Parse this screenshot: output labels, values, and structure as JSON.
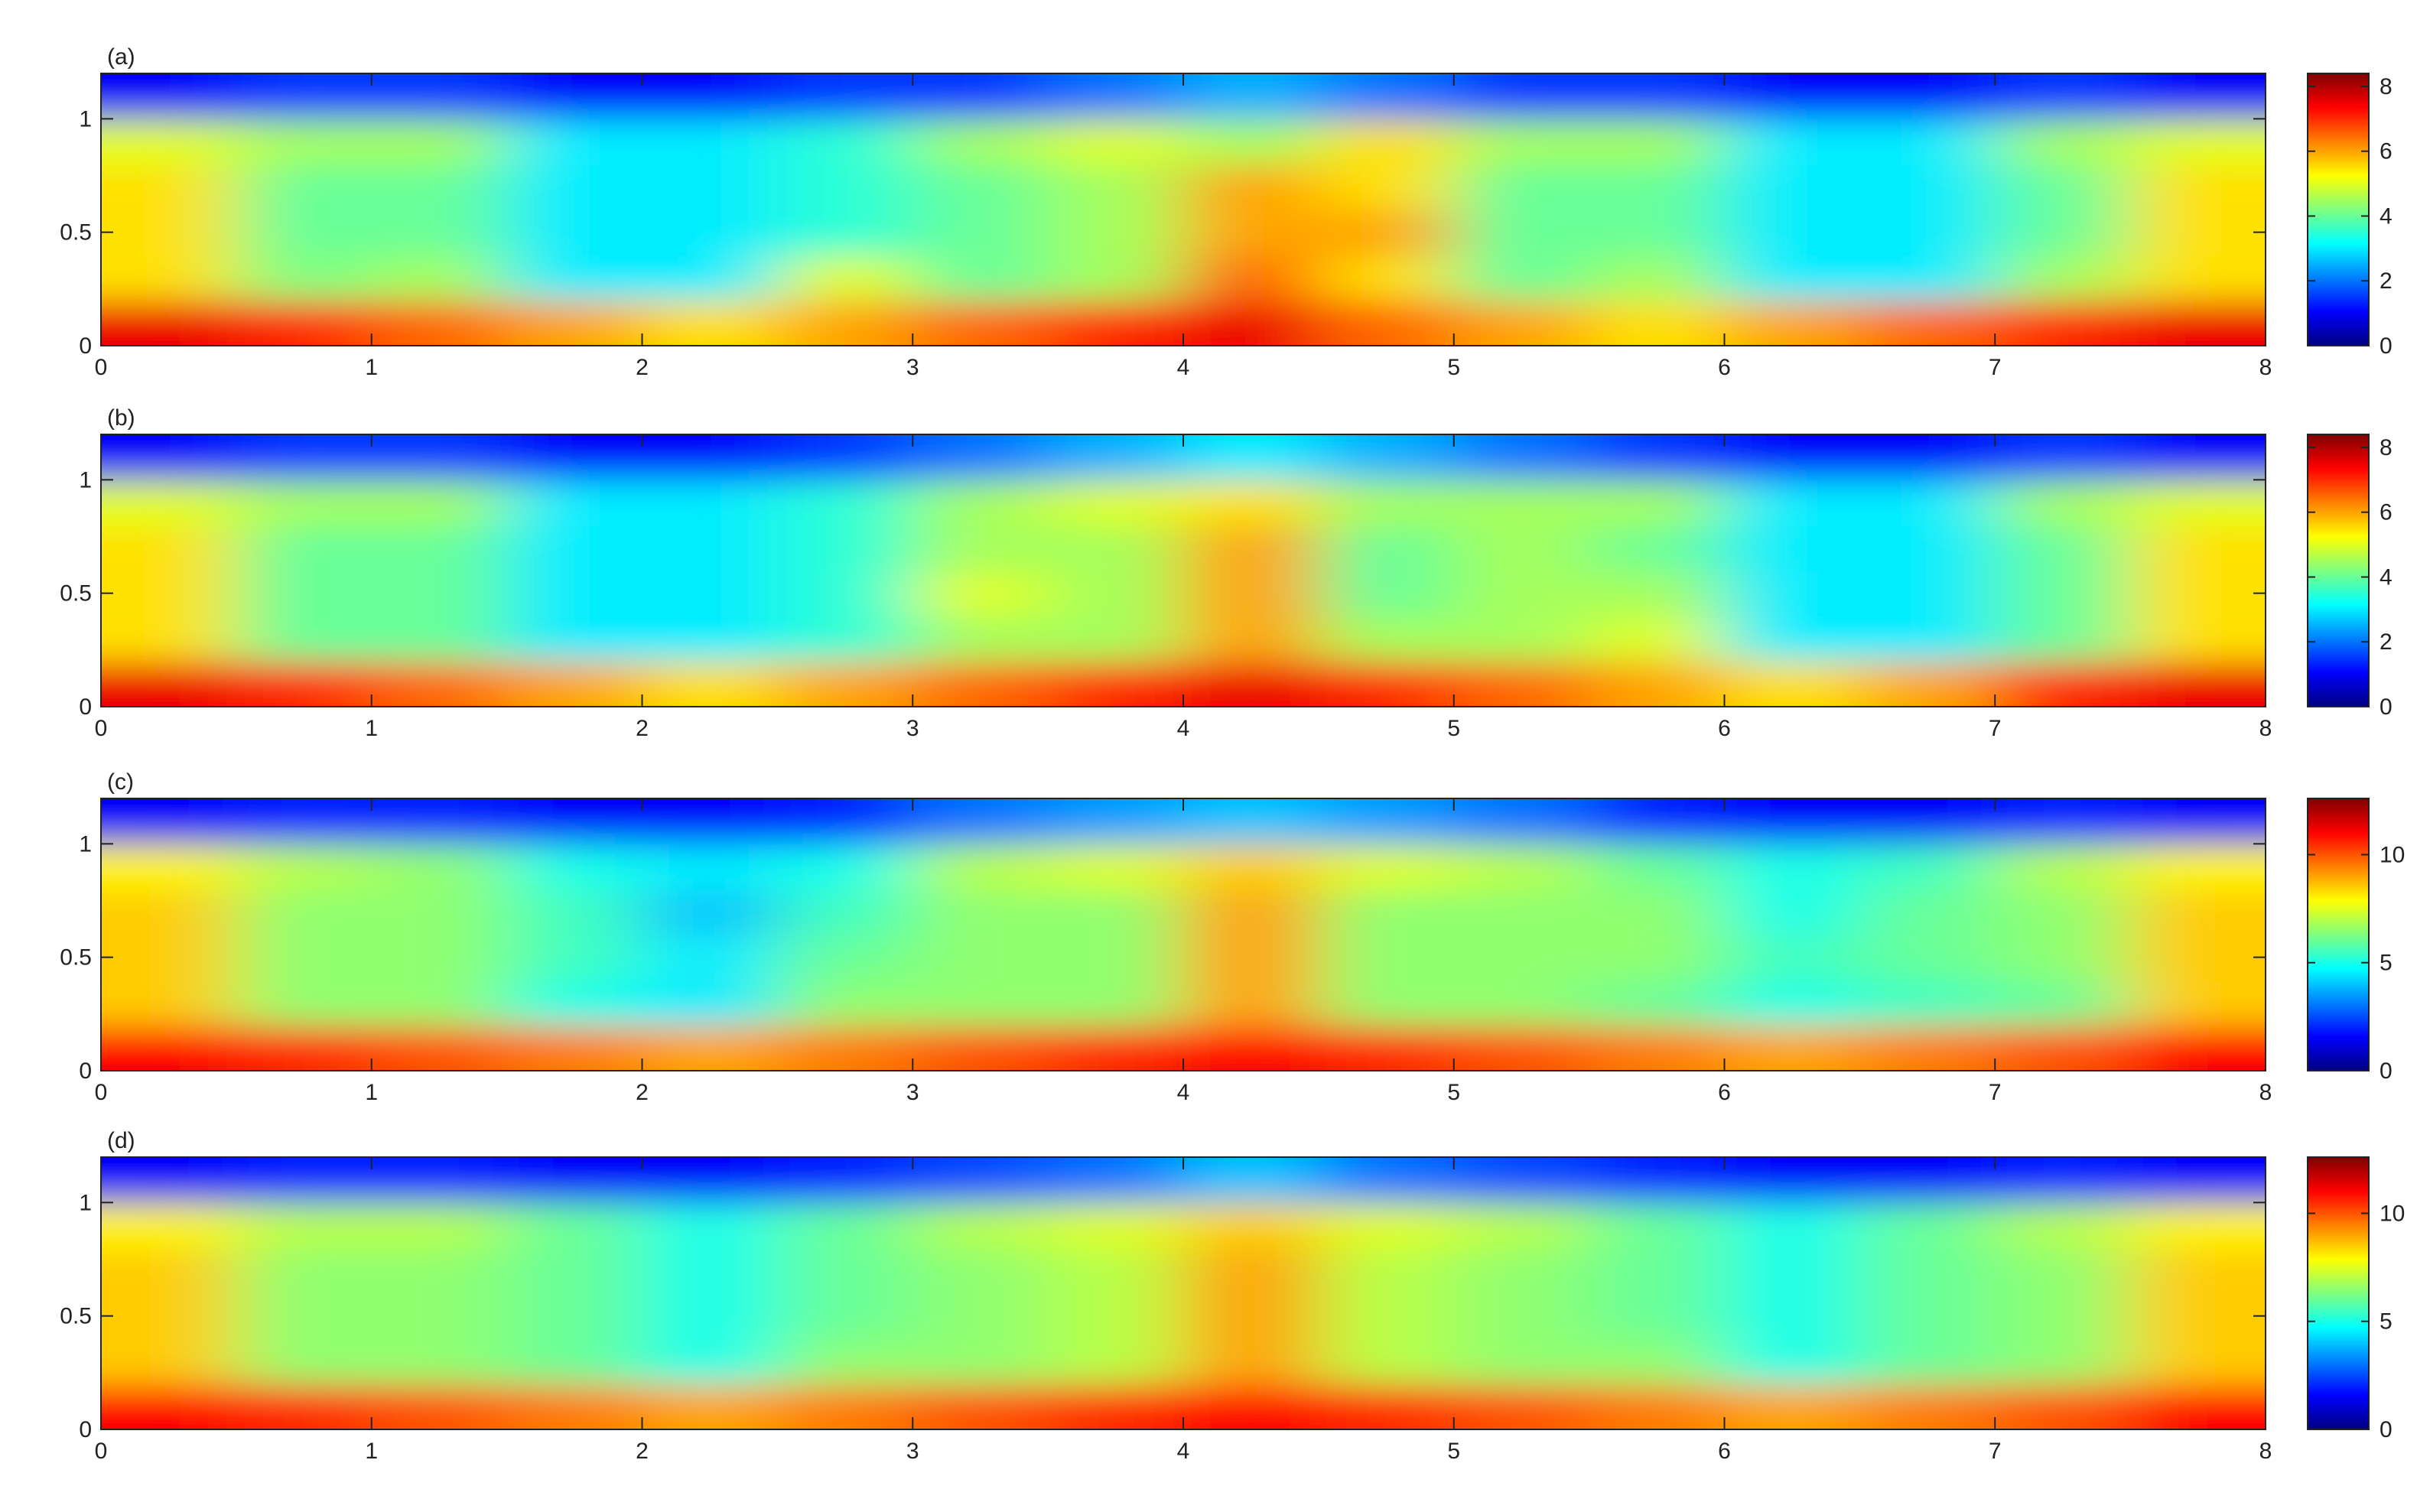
{
  "chart_data": [
    {
      "type": "heatmap",
      "label": "(a)",
      "colormap": "jet",
      "x": [
        0.25,
        0.75,
        1.25,
        1.75,
        2.25,
        2.75,
        3.25,
        3.75,
        4.25,
        4.75,
        5.25,
        5.75,
        6.25,
        6.75,
        7.25,
        7.75
      ],
      "y": [
        0.1,
        0.3,
        0.5,
        0.7,
        0.9,
        1.1
      ],
      "z": [
        [
          7.5,
          7,
          6.5,
          6,
          5.5,
          6,
          6.5,
          7,
          7.5,
          6.5,
          6,
          5.5,
          6,
          6.5,
          7,
          7.5
        ],
        [
          5.5,
          4.2,
          4.5,
          3,
          3,
          5,
          4,
          4.5,
          6.5,
          5.5,
          4,
          4.5,
          3,
          3,
          4.5,
          5.5
        ],
        [
          5.5,
          4,
          4,
          3,
          3,
          3.5,
          4,
          4.5,
          6,
          6,
          4,
          4,
          3,
          3,
          4,
          5.5
        ],
        [
          5.5,
          4,
          4,
          3,
          3,
          3.5,
          4,
          4.5,
          6,
          5.5,
          4,
          4,
          3,
          3,
          4,
          5.5
        ],
        [
          5,
          4.5,
          4.5,
          3,
          3,
          3.5,
          4.5,
          5,
          4.5,
          5.5,
          4.5,
          4.5,
          3,
          3,
          4.5,
          5
        ],
        [
          1,
          1.5,
          1.5,
          1,
          1,
          1.5,
          1.5,
          2,
          2.5,
          2,
          1.5,
          1.5,
          1,
          1,
          1.5,
          1
        ]
      ],
      "xlim": [
        0,
        8
      ],
      "ylim": [
        0,
        1.2
      ],
      "xticks": [
        0,
        1,
        2,
        3,
        4,
        5,
        6,
        7,
        8
      ],
      "yticks": [
        0,
        0.5,
        1
      ],
      "clim": [
        0,
        8.4
      ],
      "cticks": [
        0,
        2,
        4,
        6,
        8
      ]
    },
    {
      "type": "heatmap",
      "label": "(b)",
      "colormap": "jet",
      "x": [
        0.25,
        0.75,
        1.25,
        1.75,
        2.25,
        2.75,
        3.25,
        3.75,
        4.25,
        4.75,
        5.25,
        5.75,
        6.25,
        6.75,
        7.25,
        7.75
      ],
      "y": [
        0.1,
        0.3,
        0.5,
        0.7,
        0.9,
        1.1
      ],
      "z": [
        [
          7.5,
          7,
          6.5,
          6,
          5.5,
          6,
          6.5,
          7,
          7.5,
          7,
          6.5,
          6,
          5.5,
          6,
          7,
          7.5
        ],
        [
          5.5,
          4,
          4,
          3,
          3,
          3.5,
          4.5,
          4.5,
          6,
          4.5,
          4.5,
          5,
          3,
          3,
          4,
          5.5
        ],
        [
          5.5,
          4,
          4,
          3,
          3,
          3.5,
          5,
          4.5,
          6,
          4,
          4.5,
          4.5,
          3,
          3,
          4,
          5.5
        ],
        [
          5.5,
          4,
          4,
          3,
          3,
          3.5,
          4.5,
          4.5,
          6,
          4,
          4.5,
          4,
          3,
          3,
          4,
          5.5
        ],
        [
          5,
          4.5,
          4.5,
          3,
          3,
          3.5,
          4.5,
          5,
          5.5,
          4.5,
          4.5,
          4.5,
          3,
          3,
          4.5,
          5
        ],
        [
          1,
          1.5,
          1.5,
          1,
          1,
          1.5,
          2,
          2.5,
          3,
          2.5,
          2,
          1.5,
          1,
          1,
          1.5,
          1
        ]
      ],
      "xlim": [
        0,
        8
      ],
      "ylim": [
        0,
        1.2
      ],
      "xticks": [
        0,
        1,
        2,
        3,
        4,
        5,
        6,
        7,
        8
      ],
      "yticks": [
        0,
        0.5,
        1
      ],
      "clim": [
        0,
        8.4
      ],
      "cticks": [
        0,
        2,
        4,
        6,
        8
      ]
    },
    {
      "type": "heatmap",
      "label": "(c)",
      "colormap": "jet",
      "x": [
        0.25,
        0.75,
        1.25,
        1.75,
        2.25,
        2.75,
        3.25,
        3.75,
        4.25,
        4.75,
        5.25,
        5.75,
        6.25,
        6.75,
        7.25,
        7.75
      ],
      "y": [
        0.1,
        0.3,
        0.5,
        0.7,
        0.9,
        1.1
      ],
      "z": [
        [
          11,
          10.5,
          10,
          9.5,
          9,
          9.5,
          10,
          10.5,
          11,
          10.5,
          10,
          9.5,
          9,
          9.5,
          10,
          11
        ],
        [
          8.5,
          6.5,
          6.5,
          5,
          4.5,
          6.5,
          6.5,
          6.5,
          9,
          6.5,
          6.5,
          6,
          5,
          5.5,
          6,
          8.5
        ],
        [
          8.5,
          6.5,
          6.5,
          5.5,
          4.5,
          6,
          6.5,
          6.5,
          9,
          6.5,
          6.5,
          6.5,
          5.5,
          6,
          6.5,
          8.5
        ],
        [
          8.5,
          6.5,
          6.5,
          5.5,
          4,
          5.5,
          6.5,
          6.5,
          9,
          6.5,
          6.5,
          6.5,
          5,
          6,
          6.5,
          8.5
        ],
        [
          8,
          7,
          6.5,
          5,
          4.5,
          5,
          7,
          7.5,
          8.5,
          7.5,
          7,
          6,
          5,
          5.5,
          7,
          8
        ],
        [
          1.5,
          2,
          2,
          1.5,
          1.5,
          2,
          3,
          3.5,
          4,
          3.5,
          3,
          2,
          1.5,
          1.5,
          2,
          1.5
        ]
      ],
      "xlim": [
        0,
        8
      ],
      "ylim": [
        0,
        1.2
      ],
      "xticks": [
        0,
        1,
        2,
        3,
        4,
        5,
        6,
        7,
        8
      ],
      "yticks": [
        0,
        0.5,
        1
      ],
      "clim": [
        0,
        12.6
      ],
      "cticks": [
        0,
        5,
        10
      ]
    },
    {
      "type": "heatmap",
      "label": "(d)",
      "colormap": "jet",
      "x": [
        0.25,
        0.75,
        1.25,
        1.75,
        2.25,
        2.75,
        3.25,
        3.75,
        4.25,
        4.75,
        5.25,
        5.75,
        6.25,
        6.75,
        7.25,
        7.75
      ],
      "y": [
        0.1,
        0.3,
        0.5,
        0.7,
        0.9,
        1.1
      ],
      "z": [
        [
          11,
          10.5,
          10,
          9.5,
          9,
          9.5,
          10,
          10.5,
          11,
          10.5,
          10,
          9.5,
          9,
          9.5,
          10,
          11
        ],
        [
          8.5,
          6.5,
          6.5,
          6,
          5,
          6.5,
          6.5,
          7,
          9,
          7,
          6.5,
          6.5,
          5,
          6,
          6.5,
          8.5
        ],
        [
          8.5,
          6.5,
          6.5,
          6,
          5,
          6,
          6.5,
          7,
          9,
          7,
          6.5,
          6,
          5,
          6,
          6.5,
          8.5
        ],
        [
          8.5,
          6.5,
          6.5,
          6,
          5,
          6,
          6.5,
          7,
          9,
          7,
          6.5,
          6,
          5,
          6,
          6.5,
          8.5
        ],
        [
          8,
          7,
          7,
          6,
          5,
          6,
          7,
          7.5,
          8.5,
          7.5,
          7,
          6,
          5,
          6,
          7,
          8
        ],
        [
          1.5,
          2,
          2,
          1.5,
          1.5,
          2,
          2.5,
          3,
          4,
          3,
          2.5,
          2,
          1.5,
          1.5,
          2,
          1.5
        ]
      ],
      "xlim": [
        0,
        8
      ],
      "ylim": [
        0,
        1.2
      ],
      "xticks": [
        0,
        1,
        2,
        3,
        4,
        5,
        6,
        7,
        8
      ],
      "yticks": [
        0,
        0.5,
        1
      ],
      "clim": [
        0,
        12.6
      ],
      "cticks": [
        0,
        5,
        10
      ]
    }
  ]
}
